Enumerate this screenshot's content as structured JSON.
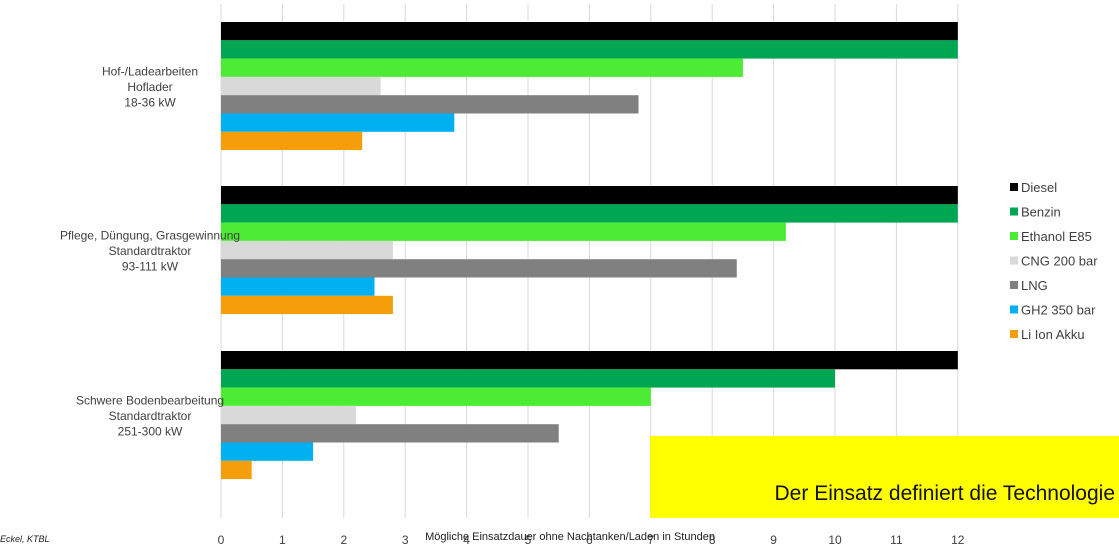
{
  "chart_data": {
    "type": "bar",
    "orientation": "horizontal",
    "xlabel": "Mögliche Einsatzdauer ohne Nachtanken/Laden in Stunden",
    "ylabel": "",
    "xlim": [
      0,
      12
    ],
    "xticks": [
      "0",
      "1",
      "2",
      "3",
      "4",
      "5",
      "6",
      "7",
      "8",
      "9",
      "10",
      "11",
      "12"
    ],
    "grid": true,
    "legend_position": "right",
    "categories": [
      {
        "lines": [
          "Hof-/Ladearbeiten",
          "Hoflader",
          "18-36 kW"
        ]
      },
      {
        "lines": [
          "Pflege, Düngung, Grasgewinnung",
          "Standardtraktor",
          "93-111 kW"
        ]
      },
      {
        "lines": [
          "Schwere Bodenbearbeitung",
          "Standardtraktor",
          "251-300 kW"
        ]
      }
    ],
    "series": [
      {
        "name": "Diesel",
        "color": "#000000",
        "values": [
          12,
          12,
          12
        ]
      },
      {
        "name": "Benzin",
        "color": "#00a651",
        "values": [
          12,
          12,
          10
        ]
      },
      {
        "name": "Ethanol E85",
        "color": "#4ceb34",
        "values": [
          8.5,
          9.2,
          7
        ]
      },
      {
        "name": "CNG 200 bar",
        "color": "#d9d9d9",
        "values": [
          2.6,
          2.8,
          2.2
        ]
      },
      {
        "name": "LNG",
        "color": "#808080",
        "values": [
          6.8,
          8.4,
          5.5
        ]
      },
      {
        "name": "GH2 350 bar",
        "color": "#00b0f0",
        "values": [
          3.8,
          2.5,
          1.5
        ]
      },
      {
        "name": "Li Ion Akku",
        "color": "#f59e0b",
        "values": [
          2.3,
          2.8,
          0.5
        ]
      }
    ]
  },
  "callout": "Der Einsatz definiert die Technologie",
  "source": "Eckel, KTBL"
}
